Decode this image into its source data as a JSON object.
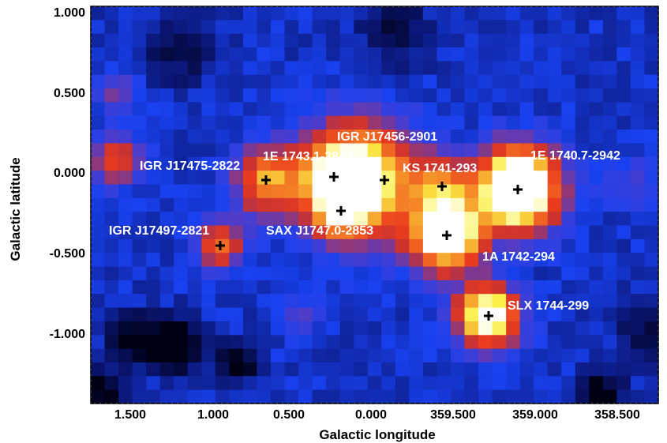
{
  "figure": {
    "x_axis": {
      "label": "Galactic longitude",
      "ticks": [
        "1.500",
        "1.000",
        "0.500",
        "0.000",
        "359.500",
        "359.000",
        "358.500"
      ]
    },
    "y_axis": {
      "label": "Galactic latitude",
      "ticks": [
        "1.000",
        "0.500",
        "0.000",
        "-0.500",
        "-1.000"
      ]
    },
    "colormap": "black-blue-red-yellow-white",
    "sources": [
      {
        "name": "IGR J17475-2822",
        "marker": "plus"
      },
      {
        "name": "1E 1743.1-2843",
        "marker": "plus"
      },
      {
        "name": "IGR J17456-2901",
        "marker": "plus"
      },
      {
        "name": "KS 1741-293",
        "marker": "plus"
      },
      {
        "name": "1E 1740.7-2942",
        "marker": "plus"
      },
      {
        "name": "IGR J17497-2821",
        "marker": "plus"
      },
      {
        "name": "SAX J1747.0-2853",
        "marker": "plus"
      },
      {
        "name": "1A 1742-294",
        "marker": "plus"
      },
      {
        "name": "SLX 1744-299",
        "marker": "plus"
      }
    ]
  }
}
